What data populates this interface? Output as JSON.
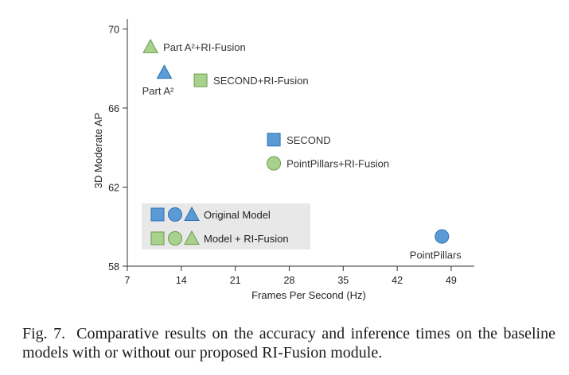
{
  "chart_data": {
    "type": "scatter",
    "title": "",
    "xlabel": "Frames Per Second  (Hz)",
    "ylabel": "3D Moderate AP",
    "xlim": [
      7,
      52
    ],
    "ylim": [
      58,
      70.5
    ],
    "xticks": [
      7,
      14,
      21,
      28,
      35,
      42,
      49
    ],
    "yticks": [
      58,
      62,
      66,
      70
    ],
    "grid": false,
    "colors": {
      "original_fill": "#5b9bd5",
      "original_stroke": "#2e6fb4",
      "fusion_fill": "#a9d18e",
      "fusion_stroke": "#6a9c4a"
    },
    "points": [
      {
        "label": "Part A²",
        "x": 11.8,
        "y": 67.8,
        "shape": "triangle",
        "group": "original",
        "label_pos": "below"
      },
      {
        "label": "Part A²+RI-Fusion",
        "x": 10.0,
        "y": 69.1,
        "shape": "triangle",
        "group": "fusion",
        "label_pos": "right"
      },
      {
        "label": "SECOND+RI-Fusion",
        "x": 16.5,
        "y": 67.4,
        "shape": "square",
        "group": "fusion",
        "label_pos": "right"
      },
      {
        "label": "SECOND",
        "x": 26.0,
        "y": 64.4,
        "shape": "square",
        "group": "original",
        "label_pos": "right"
      },
      {
        "label": "PointPillars+RI-Fusion",
        "x": 26.0,
        "y": 63.2,
        "shape": "circle",
        "group": "fusion",
        "label_pos": "right"
      },
      {
        "label": "PointPillars",
        "x": 47.8,
        "y": 59.5,
        "shape": "circle",
        "group": "original",
        "label_pos": "below"
      }
    ],
    "legend": {
      "placement": "bottom-left",
      "entries": [
        {
          "label": "Original Model",
          "group": "original"
        },
        {
          "label": "Model + RI-Fusion",
          "group": "fusion"
        }
      ]
    }
  },
  "caption": {
    "label": "Fig. 7.",
    "text": "Comparative results on the accuracy and inference times on the baseline models with or without our proposed RI-Fusion module."
  }
}
